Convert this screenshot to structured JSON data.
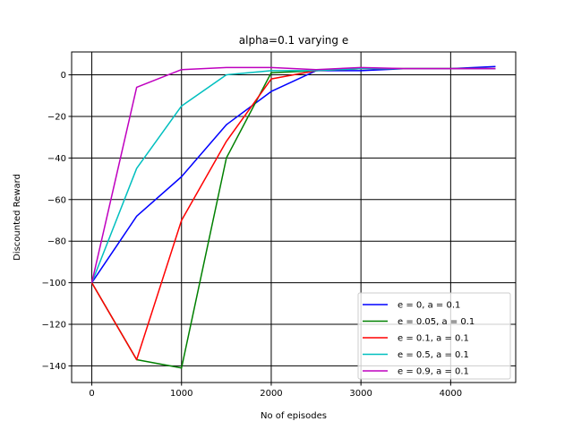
{
  "chart_data": {
    "type": "line",
    "title": "alpha=0.1 varying e",
    "xlabel": "No of episodes",
    "ylabel": "Discounted Reward",
    "xlim": [
      -225,
      4725
    ],
    "ylim": [
      -148,
      11
    ],
    "xticks": [
      0,
      1000,
      2000,
      3000,
      4000
    ],
    "yticks": [
      -140,
      -120,
      -100,
      -80,
      -60,
      -40,
      -20,
      0
    ],
    "grid": true,
    "legend_position": "lower-right",
    "x": [
      0,
      500,
      1000,
      1500,
      2000,
      2500,
      3000,
      3500,
      4000,
      4500
    ],
    "series": [
      {
        "name": "e = 0, a = 0.1",
        "color": "#0000ff",
        "values": [
          -100,
          -68,
          -49,
          -24,
          -8,
          2,
          2,
          3,
          3,
          4
        ]
      },
      {
        "name": "e = 0.05, a = 0.1",
        "color": "#008000",
        "values": [
          -100,
          -137,
          -141,
          -40,
          1,
          2,
          3,
          3,
          3,
          3
        ]
      },
      {
        "name": "e = 0.1, a = 0.1",
        "color": "#ff0000",
        "values": [
          -100,
          -137,
          -70,
          -32,
          -2,
          2,
          3,
          3,
          3,
          3
        ]
      },
      {
        "name": "e = 0.5, a = 0.1",
        "color": "#00bfbf",
        "values": [
          -100,
          -45,
          -15,
          0,
          2,
          2,
          3,
          3,
          3,
          3
        ]
      },
      {
        "name": "e = 0.9, a = 0.1",
        "color": "#bf00bf",
        "values": [
          -100,
          -6,
          2.5,
          3.5,
          3.5,
          2.5,
          3.5,
          3,
          3,
          3
        ]
      }
    ]
  }
}
